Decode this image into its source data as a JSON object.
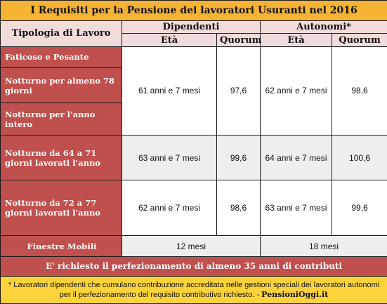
{
  "title": "I Requisiti per la Pensione dei lavoratori Usuranti nel 2016",
  "header": {
    "type_label": "Tipologia di Lavoro",
    "groups": [
      "Dipendenti",
      "Autonomi*"
    ],
    "subcolumns": [
      "Età",
      "Quorum",
      "Età",
      "Quorum"
    ]
  },
  "rows": [
    {
      "labels": [
        "Faticoso e Pesante",
        "Notturno per almeno 78 giorni",
        "Notturno per l'anno intero"
      ],
      "cells": [
        "61 anni e 7 mesi",
        "97,6",
        "62 anni e 7 mesi",
        "98,6"
      ]
    },
    {
      "labels": [
        "Notturno da 64 a 71 giorni lavorati l'anno"
      ],
      "cells": [
        "63 anni e 7 mesi",
        "99,6",
        "64 anni e 7 mesi",
        "100,6"
      ]
    },
    {
      "labels": [
        "Notturno da 72 a 77 giorni lavorati l'anno"
      ],
      "cells": [
        "62 anni e 7 mesi",
        "98,6",
        "63 anni e 7 mesi",
        "99,6"
      ]
    }
  ],
  "windows": {
    "label": "Finestre Mobili",
    "cells": [
      "12 mesi",
      "18 mesi"
    ]
  },
  "requirement": "E' richiesto il perfezionamento di almeno 35 anni di contributi",
  "note": {
    "text": "* Lavoratori dipendenti che cumulano contribuzione accreditata nelle gestioni speciali dei lavoratori autonomi per il perfezionamento del requisito contributivo richiesto.  - ",
    "source": "PensioniOggi.it"
  }
}
